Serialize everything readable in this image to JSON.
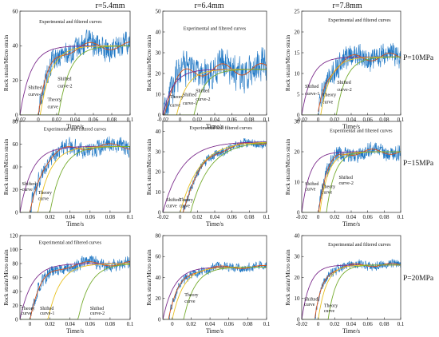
{
  "column_headers": [
    "r=5.4mm",
    "r=6.4mm",
    "r=7.8mm"
  ],
  "row_headers": [
    "P=10MPa",
    "P=15MPa",
    "P=20MPa"
  ],
  "colors": {
    "experimental": "#1f77c4",
    "filtered": "#d95319",
    "theory": "#7e2f8e",
    "shifted_1": "#e8c020",
    "shifted_2": "#77ac30"
  },
  "chart_data": [
    {
      "type": "line",
      "row": 0,
      "col": 0,
      "xlabel": "Time/s",
      "ylabel": "Rock strain/Micro strain",
      "xlim": [
        -0.02,
        0.1
      ],
      "ylim": [
        0,
        60
      ],
      "xticks": [
        "-0.02",
        "0",
        "0.02",
        "0.04",
        "0.06",
        "0.08",
        "0.1"
      ],
      "yticks": [
        "0",
        "20",
        "40",
        "60"
      ],
      "theory_peak": 40,
      "theory_rise": 0.012,
      "theory_start": -0.02,
      "shift_1": 0.002,
      "shift_2": 0.022,
      "noise": 9,
      "exp_offset": 0.0,
      "exp_end": 0.1,
      "annotations": [
        {
          "text": "Experimental and filtered curves",
          "x": 0.035,
          "y": 53
        },
        {
          "text": "Shifted",
          "x": -0.011,
          "y": 15
        },
        {
          "text": "curve-1",
          "x": -0.011,
          "y": 11
        },
        {
          "text": "Shifted",
          "x": 0.021,
          "y": 20
        },
        {
          "text": "curve-2",
          "x": 0.021,
          "y": 16
        },
        {
          "text": "Theory",
          "x": 0.01,
          "y": 8
        },
        {
          "text": "curve",
          "x": 0.01,
          "y": 4
        }
      ]
    },
    {
      "type": "line",
      "row": 0,
      "col": 1,
      "xlabel": "Time/s",
      "ylabel": "Rock strain/Micro strain",
      "xlim": [
        -0.02,
        0.1
      ],
      "ylim": [
        0,
        50
      ],
      "xticks": [
        "-0.02",
        "0",
        "0.02",
        "0.04",
        "0.06",
        "0.08",
        "0.1"
      ],
      "yticks": [
        "0",
        "10",
        "20",
        "30",
        "40",
        "50"
      ],
      "theory_peak": 22,
      "theory_rise": 0.012,
      "theory_start": -0.02,
      "shift_1": -0.004,
      "shift_2": 0.016,
      "noise": 11,
      "exp_offset": -0.02,
      "exp_end": 0.1,
      "annotations": [
        {
          "text": "Experimental and filtered curves",
          "x": 0.04,
          "y": 41
        },
        {
          "text": "Shifted",
          "x": 0.003,
          "y": 9
        },
        {
          "text": "curve-1",
          "x": 0.003,
          "y": 5
        },
        {
          "text": "Shifted",
          "x": 0.018,
          "y": 11
        },
        {
          "text": "curve-2",
          "x": 0.018,
          "y": 7
        },
        {
          "text": "Theory",
          "x": -0.012,
          "y": 8
        },
        {
          "text": "curve",
          "x": -0.012,
          "y": 4
        }
      ]
    },
    {
      "type": "line",
      "row": 0,
      "col": 2,
      "xlabel": "Time/s",
      "ylabel": "Rock strain/Micro strain",
      "xlim": [
        -0.02,
        0.1
      ],
      "ylim": [
        0,
        25
      ],
      "xticks": [
        "-0.02",
        "0",
        "0.02",
        "0.04",
        "0.06",
        "0.08",
        "0.1"
      ],
      "yticks": [
        "0",
        "5",
        "10",
        "15",
        "20",
        "25"
      ],
      "theory_peak": 14,
      "theory_rise": 0.012,
      "theory_start": -0.02,
      "shift_1": 0.003,
      "shift_2": 0.022,
      "noise": 3.6,
      "exp_offset": 0.0,
      "exp_end": 0.1,
      "annotations": [
        {
          "text": "Experimental and filtered curves",
          "x": 0.05,
          "y": 22.5
        },
        {
          "text": "Shifted",
          "x": -0.016,
          "y": 6.5
        },
        {
          "text": "curve-1",
          "x": -0.016,
          "y": 4.8
        },
        {
          "text": "Theory",
          "x": 0.005,
          "y": 4.5
        },
        {
          "text": "curve",
          "x": 0.005,
          "y": 2.8
        },
        {
          "text": "Shifted",
          "x": 0.023,
          "y": 7.5
        },
        {
          "text": "curve-2",
          "x": 0.023,
          "y": 5.8
        }
      ]
    },
    {
      "type": "line",
      "row": 1,
      "col": 0,
      "xlabel": "Time/s",
      "ylabel": "Rock strain/Micro strain",
      "xlim": [
        -0.01,
        0.1
      ],
      "ylim": [
        0,
        80
      ],
      "xticks": [
        "0",
        "0.02",
        "0.04",
        "0.06",
        "0.08",
        "0.1"
      ],
      "yticks": [
        "0",
        "20",
        "40",
        "60",
        "80"
      ],
      "theory_peak": 58,
      "theory_rise": 0.012,
      "theory_start": -0.01,
      "shift_1": 0.008,
      "shift_2": 0.02,
      "noise": 10,
      "exp_offset": 0.0,
      "exp_end": 0.1,
      "annotations": [
        {
          "text": "Experimental and filtered curves",
          "x": 0.045,
          "y": 72
        },
        {
          "text": "Shifted",
          "x": -0.008,
          "y": 24
        },
        {
          "text": "curve",
          "x": -0.008,
          "y": 19
        },
        {
          "text": "Theory",
          "x": 0.008,
          "y": 16
        },
        {
          "text": "curve",
          "x": 0.008,
          "y": 11
        }
      ]
    },
    {
      "type": "line",
      "row": 1,
      "col": 1,
      "xlabel": "Time/s",
      "ylabel": "Rock strain/Micro strain",
      "xlim": [
        -0.02,
        0.1
      ],
      "ylim": [
        0,
        45
      ],
      "xticks": [
        "-0.02",
        "0",
        "0.02",
        "0.04",
        "0.06",
        "0.08",
        "0.1"
      ],
      "yticks": [
        "0",
        "10",
        "20",
        "30",
        "40"
      ],
      "theory_peak": 35,
      "theory_rise": 0.022,
      "theory_start": -0.02,
      "shift_1": 0.0,
      "shift_2": 0.012,
      "noise": 3,
      "exp_offset": 0.003,
      "exp_end": 0.1,
      "annotations": [
        {
          "text": "Experimental and filtered curves",
          "x": 0.047,
          "y": 41
        },
        {
          "text": "Shifted",
          "x": -0.016,
          "y": 5.5
        },
        {
          "text": "curve",
          "x": -0.016,
          "y": 2.5
        },
        {
          "text": "Theory",
          "x": -0.001,
          "y": 5.5
        },
        {
          "text": "curve",
          "x": -0.001,
          "y": 2.5
        }
      ]
    },
    {
      "type": "line",
      "row": 1,
      "col": 2,
      "xlabel": "Time/s",
      "ylabel": "Rock strain/Micro strain",
      "xlim": [
        -0.02,
        0.1
      ],
      "ylim": [
        0,
        30
      ],
      "xticks": [
        "-0.02",
        "0",
        "0.02",
        "0.04",
        "0.06",
        "0.08",
        "0.1"
      ],
      "yticks": [
        "0",
        "10",
        "20",
        "30"
      ],
      "theory_peak": 20,
      "theory_rise": 0.01,
      "theory_start": -0.02,
      "shift_1": 0.002,
      "shift_2": 0.01,
      "noise": 3.5,
      "exp_offset": 0.0,
      "exp_end": 0.1,
      "annotations": [
        {
          "text": "Experimental and filtered curves",
          "x": 0.052,
          "y": 26.5
        },
        {
          "text": "Shifted",
          "x": -0.016,
          "y": 9
        },
        {
          "text": "curve",
          "x": -0.016,
          "y": 7.2
        },
        {
          "text": "Theory",
          "x": 0.004,
          "y": 8
        },
        {
          "text": "curve",
          "x": 0.004,
          "y": 6.2
        },
        {
          "text": "Shifted",
          "x": 0.025,
          "y": 11
        },
        {
          "text": "curve-2",
          "x": 0.025,
          "y": 9.2
        }
      ]
    },
    {
      "type": "line",
      "row": 2,
      "col": 0,
      "xlabel": "Time/s",
      "ylabel": "Rock strain/Micro strain",
      "xlim": [
        -0.01,
        0.1
      ],
      "ylim": [
        0,
        120
      ],
      "xticks": [
        "0",
        "0.02",
        "0.04",
        "0.06",
        "0.08",
        "0.1"
      ],
      "yticks": [
        "0",
        "20",
        "40",
        "60",
        "80",
        "100",
        "120"
      ],
      "theory_peak": 80,
      "theory_rise": 0.012,
      "theory_start": -0.01,
      "shift_1": 0.018,
      "shift_2": 0.048,
      "noise": 13,
      "exp_offset": 0.0,
      "exp_end": 0.1,
      "annotations": [
        {
          "text": "Experimental and filtered curves",
          "x": 0.04,
          "y": 108
        },
        {
          "text": "Theory",
          "x": -0.009,
          "y": 14
        },
        {
          "text": "curve",
          "x": -0.009,
          "y": 7
        },
        {
          "text": "Shifted",
          "x": 0.01,
          "y": 14
        },
        {
          "text": "curve-1",
          "x": 0.01,
          "y": 7
        },
        {
          "text": "Shifted",
          "x": 0.06,
          "y": 14
        },
        {
          "text": "curve-2",
          "x": 0.06,
          "y": 7
        }
      ]
    },
    {
      "type": "line",
      "row": 2,
      "col": 1,
      "xlabel": "Time/s",
      "ylabel": "Rock strain/Micro strain",
      "xlim": [
        -0.01,
        0.1
      ],
      "ylim": [
        0,
        80
      ],
      "xticks": [
        "0",
        "0.02",
        "0.04",
        "0.06",
        "0.08",
        "0.1"
      ],
      "yticks": [
        "0",
        "20",
        "40",
        "60",
        "80"
      ],
      "theory_peak": 50,
      "theory_rise": 0.012,
      "theory_start": -0.01,
      "shift_1": 0.0,
      "shift_2": 0.012,
      "noise": 6,
      "exp_offset": -0.004,
      "exp_end": 0.1,
      "annotations": [
        {
          "text": "Theory",
          "x": 0.013,
          "y": 22
        },
        {
          "text": "curve",
          "x": 0.013,
          "y": 16
        }
      ]
    },
    {
      "type": "line",
      "row": 2,
      "col": 2,
      "xlabel": "Time/s",
      "ylabel": "Rock strain/Micro strain",
      "xlim": [
        -0.02,
        0.1
      ],
      "ylim": [
        0,
        40
      ],
      "xticks": [
        "-0.02",
        "0",
        "0.02",
        "0.04",
        "0.06",
        "0.08",
        "0.1"
      ],
      "yticks": [
        "0",
        "10",
        "20",
        "30",
        "40"
      ],
      "theory_peak": 26,
      "theory_rise": 0.01,
      "theory_start": -0.02,
      "shift_1": 0.0,
      "shift_2": 0.012,
      "noise": 3,
      "exp_offset": -0.004,
      "exp_end": 0.1,
      "annotations": [
        {
          "text": "Experimental and filtered curves",
          "x": 0.05,
          "y": 35
        },
        {
          "text": "Shifted",
          "x": -0.017,
          "y": 9
        },
        {
          "text": "curve",
          "x": -0.017,
          "y": 6.5
        },
        {
          "text": "Theory",
          "x": 0.007,
          "y": 6
        },
        {
          "text": "curve",
          "x": 0.007,
          "y": 3.5
        }
      ]
    }
  ]
}
